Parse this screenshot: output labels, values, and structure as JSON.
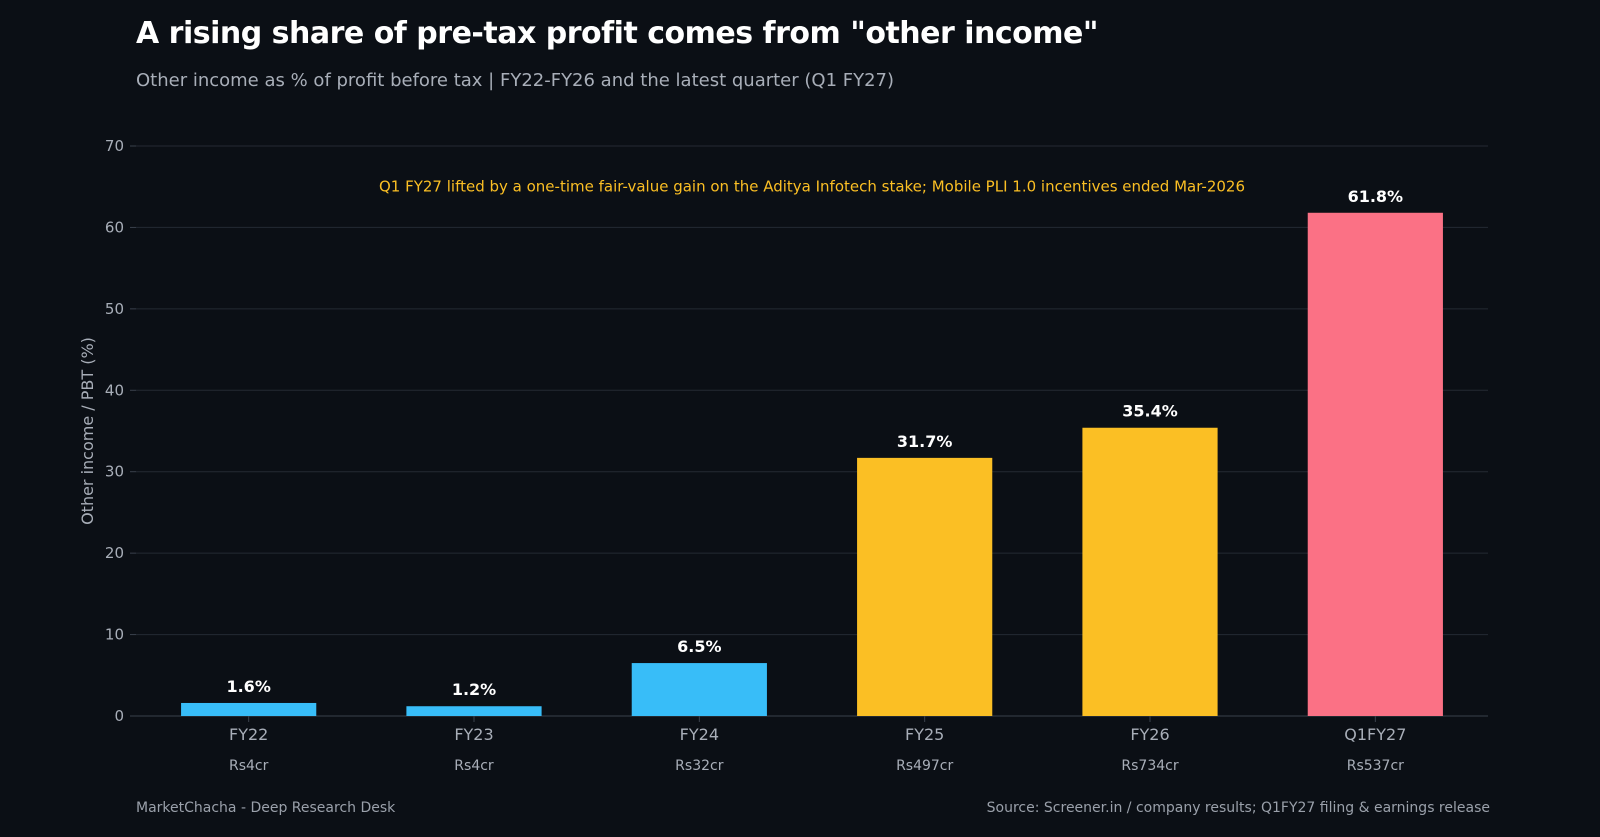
{
  "header": {
    "title": "A rising share of pre-tax profit comes from \"other income\"",
    "subtitle": "Other income as % of profit before tax  |  FY22-FY26 and the latest quarter (Q1 FY27)"
  },
  "footer": {
    "left": "MarketChacha - Deep Research Desk",
    "right": "Source: Screener.in / company results; Q1FY27 filing & earnings release"
  },
  "colors": {
    "background": "#0b0f15",
    "grid": "#242a33",
    "axis_text": "#a8aeb8",
    "value_label": "#ffffff",
    "annotation": "#fbbf24",
    "blue": "#38bdf8",
    "amber": "#fbbf24",
    "pink": "#fb7185"
  },
  "chart_data": {
    "type": "bar",
    "title": "A rising share of pre-tax profit comes from \"other income\"",
    "subtitle": "Other income as % of profit before tax  |  FY22-FY26 and the latest quarter (Q1 FY27)",
    "xlabel": "",
    "ylabel": "Other income / PBT (%)",
    "ylim": [
      0,
      70
    ],
    "yticks": [
      0,
      10,
      20,
      30,
      40,
      50,
      60,
      70
    ],
    "grid": true,
    "categories": [
      "FY22",
      "FY23",
      "FY24",
      "FY25",
      "FY26",
      "Q1FY27"
    ],
    "values": [
      1.6,
      1.2,
      6.5,
      31.7,
      35.4,
      61.8
    ],
    "value_labels": [
      "1.6%",
      "1.2%",
      "6.5%",
      "31.7%",
      "35.4%",
      "61.8%"
    ],
    "secondary_labels": [
      "Rs4cr",
      "Rs4cr",
      "Rs32cr",
      "Rs497cr",
      "Rs734cr",
      "Rs537cr"
    ],
    "bar_colors": [
      "#38bdf8",
      "#38bdf8",
      "#38bdf8",
      "#fbbf24",
      "#fbbf24",
      "#fb7185"
    ],
    "annotation": "Q1 FY27 lifted by a one-time fair-value gain on the Aditya Infotech stake; Mobile PLI 1.0 incentives ended Mar-2026"
  }
}
